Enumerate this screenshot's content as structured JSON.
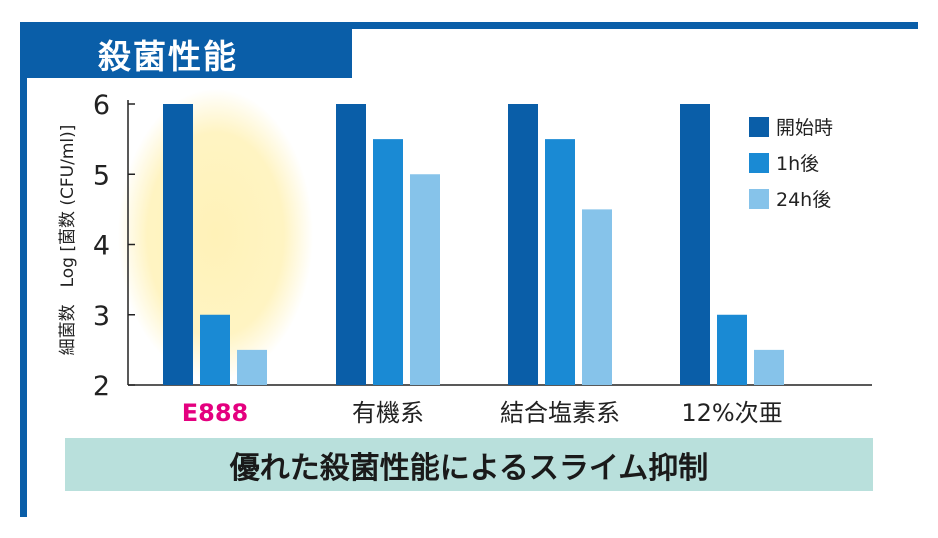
{
  "header": {
    "title": "殺菌性能"
  },
  "banner": {
    "text": "優れた殺菌性能によるスライム抑制"
  },
  "colors": {
    "brand": "#0a5ea8",
    "highlight_label": "#e4007f",
    "banner_bg": "#b9e0dc",
    "glow": "#fff2b8"
  },
  "chart_data": {
    "type": "bar",
    "title": "",
    "ylabel": "細菌数　Log [菌数 (CFU/ml)]",
    "xlabel": "",
    "ylim": [
      2,
      6
    ],
    "yticks": [
      2,
      3,
      4,
      5,
      6
    ],
    "categories": [
      "E888",
      "有機系",
      "結合塩素系",
      "12%次亜"
    ],
    "highlight_category": "E888",
    "legend_position": "top-right",
    "series": [
      {
        "name": "開始時",
        "color": "#0a5ea8",
        "values": [
          6,
          6,
          6,
          6
        ]
      },
      {
        "name": "1h後",
        "color": "#1a8ad4",
        "values": [
          3,
          5.5,
          5.5,
          3
        ]
      },
      {
        "name": "24h後",
        "color": "#86c3ea",
        "values": [
          2.5,
          5,
          4.5,
          2.5
        ]
      }
    ]
  }
}
